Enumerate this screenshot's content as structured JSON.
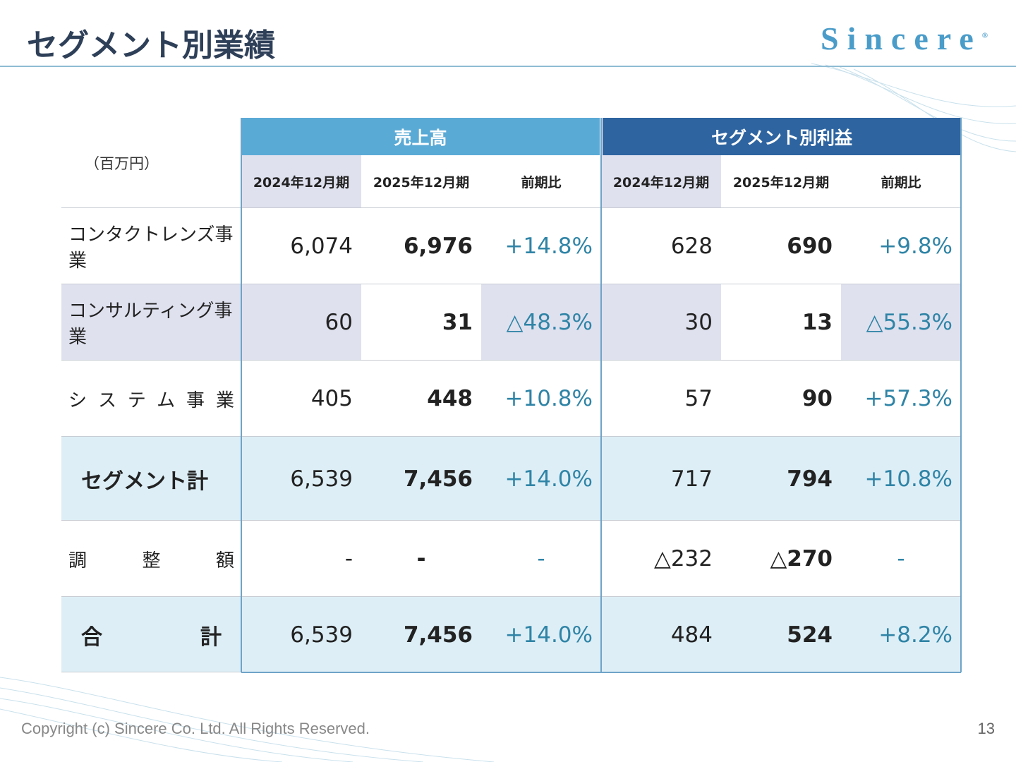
{
  "header": {
    "title": "セグメント別業績",
    "logo": "Sincere",
    "logo_mark": "®"
  },
  "table": {
    "unit": "（百万円）",
    "groups": [
      {
        "name": "売上高",
        "columns": [
          "2024年12月期",
          "2025年12月期",
          "前期比"
        ]
      },
      {
        "name": "セグメント別利益",
        "columns": [
          "2024年12月期",
          "2025年12月期",
          "前期比"
        ]
      }
    ],
    "rows": [
      {
        "label": "コンタクトレンズ事業",
        "cells": [
          "6,074",
          "6,976",
          "+14.8%",
          "628",
          "690",
          "+9.8%"
        ]
      },
      {
        "label": "コンサルティング事業",
        "cells": [
          "60",
          "31",
          "△48.3%",
          "30",
          "13",
          "△55.3%"
        ]
      },
      {
        "label": "システム事業",
        "cells": [
          "405",
          "448",
          "+10.8%",
          "57",
          "90",
          "+57.3%"
        ]
      },
      {
        "label": "セグメント計",
        "cells": [
          "6,539",
          "7,456",
          "+14.0%",
          "717",
          "794",
          "+10.8%"
        ]
      },
      {
        "label": "調整額",
        "cells": [
          "-",
          "-",
          "-",
          "△232",
          "△270",
          "-"
        ]
      },
      {
        "label": "合計",
        "cells": [
          "6,539",
          "7,456",
          "+14.0%",
          "484",
          "524",
          "+8.2%"
        ]
      }
    ]
  },
  "footer": {
    "copyright": "Copyright (c) Sincere Co. Ltd. All Rights Reserved.",
    "page": "13"
  }
}
